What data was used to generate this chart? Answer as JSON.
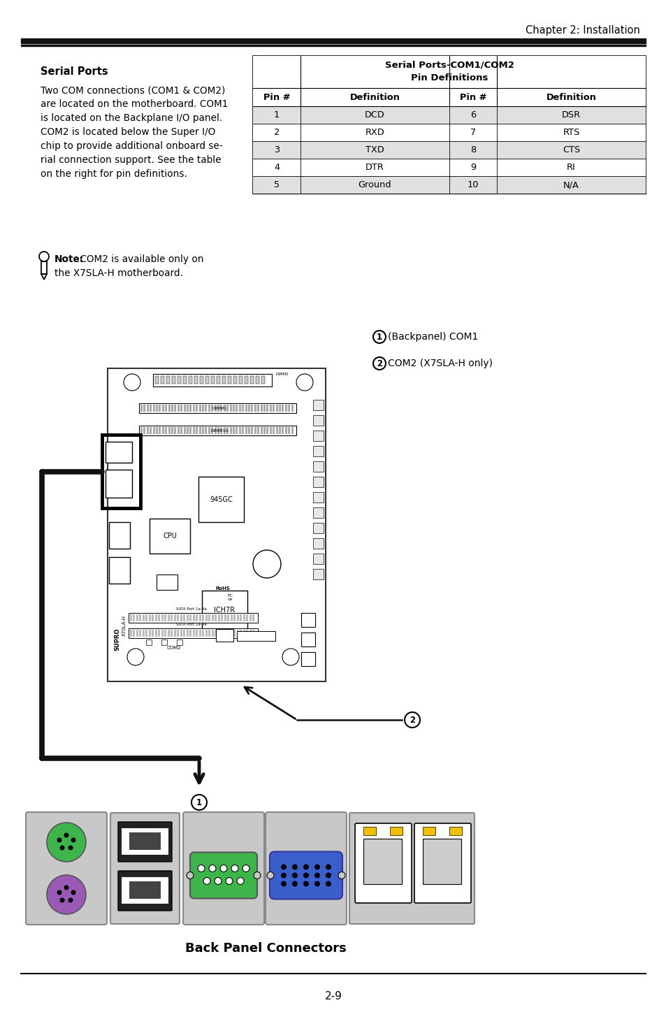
{
  "page_title": "Chapter 2: Installation",
  "section_title": "Serial Ports",
  "body_text_lines": [
    "Two COM connections (COM1 & COM2)",
    "are located on the motherboard. COM1",
    "is located on the Backplane I/O panel.",
    "COM2 is located below the Super I/O",
    "chip to provide additional onboard se-",
    "rial connection support. See the table",
    "on the right for pin definitions."
  ],
  "note_bold": "Note:",
  "note_text": " COM2 is available only on",
  "note_text2": "the X7SLA-H motherboard.",
  "table_title1": "Serial Ports-COM1/COM2",
  "table_title2": "Pin Definitions",
  "table_headers": [
    "Pin #",
    "Definition",
    "Pin #",
    "Definition"
  ],
  "table_rows": [
    [
      "1",
      "DCD",
      "6",
      "DSR"
    ],
    [
      "2",
      "RXD",
      "7",
      "RTS"
    ],
    [
      "3",
      "TXD",
      "8",
      "CTS"
    ],
    [
      "4",
      "DTR",
      "9",
      "RI"
    ],
    [
      "5",
      "Ground",
      "10",
      "N/A"
    ]
  ],
  "label1": "(Backpanel) COM1",
  "label2": "COM2 (X7SLA-H only)",
  "bottom_caption": "Back Panel Connectors",
  "page_number": "2-9",
  "bg_color": "#ffffff",
  "text_color": "#000000",
  "table_alt_row_bg": "#e0e0e0",
  "thick_line_color": "#111111",
  "connector_green": "#3db54a",
  "connector_purple": "#9b59b6",
  "connector_blue": "#3a5fcd",
  "connector_gray": "#b0b0b0",
  "mb_border": "#333333"
}
